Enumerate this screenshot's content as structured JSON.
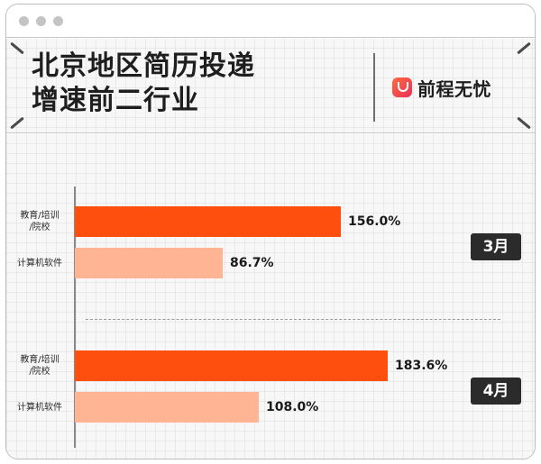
{
  "header": {
    "title_line1": "北京地区简历投递",
    "title_line2": "增速前二行业",
    "logo_text": "前程无忧"
  },
  "colors": {
    "primary_bar": "#ff4f0f",
    "secondary_bar": "#ffb594",
    "month_badge": "#2b2b2b"
  },
  "chart_data": {
    "type": "bar",
    "orientation": "horizontal",
    "groups": [
      {
        "month": "3月",
        "bars": [
          {
            "category": "教育/培训/院校",
            "value": 156.0,
            "label": "156.0%"
          },
          {
            "category": "计算机软件",
            "value": 86.7,
            "label": "86.7%"
          }
        ]
      },
      {
        "month": "4月",
        "bars": [
          {
            "category": "教育/培训/院校",
            "value": 183.6,
            "label": "183.6%"
          },
          {
            "category": "计算机软件",
            "value": 108.0,
            "label": "108.0%"
          }
        ]
      }
    ],
    "category_lines": {
      "教育/培训/院校": [
        "教育/培训",
        "/院校"
      ],
      "计算机软件": [
        "计算机软件"
      ]
    },
    "xlim": [
      0,
      200
    ],
    "grid": false,
    "legend": "none"
  }
}
